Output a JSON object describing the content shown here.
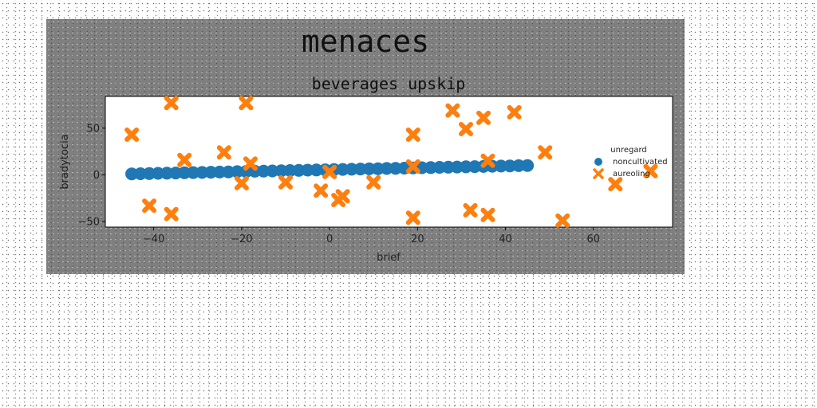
{
  "figure": {
    "suptitle": "menaces",
    "background": "#7f7f7f"
  },
  "chart_data": {
    "type": "scatter",
    "title": "beverages upskip",
    "xlabel": "brief",
    "ylabel": "bradytocia",
    "xlim": [
      -51,
      78
    ],
    "ylim": [
      -56,
      84
    ],
    "xticks": [
      -40,
      -20,
      0,
      20,
      40,
      60
    ],
    "yticks": [
      -50,
      0,
      50
    ],
    "grid": false,
    "legend": {
      "title": "unregard",
      "placement": "right",
      "entries": [
        "noncultivated",
        "aureoling"
      ]
    },
    "series": [
      {
        "name": "noncultivated",
        "marker": "circle",
        "color": "#1f77b4",
        "x": [
          -45,
          -43,
          -41,
          -39,
          -37,
          -35,
          -33,
          -31,
          -29,
          -27,
          -25,
          -23,
          -21,
          -19,
          -17,
          -15,
          -13,
          -11,
          -9,
          -7,
          -5,
          -3,
          -1,
          1,
          3,
          5,
          7,
          9,
          11,
          13,
          15,
          17,
          19,
          21,
          23,
          25,
          27,
          29,
          31,
          33,
          35,
          37,
          39,
          41,
          43,
          45
        ],
        "y": [
          1.0,
          1.2,
          1.4,
          1.6,
          1.8,
          2.0,
          2.2,
          2.4,
          2.6,
          2.8,
          3.0,
          3.2,
          3.4,
          3.6,
          3.8,
          4.0,
          4.2,
          4.4,
          4.6,
          4.8,
          5.0,
          5.2,
          5.4,
          5.6,
          5.8,
          6.0,
          6.2,
          6.4,
          6.6,
          6.8,
          7.0,
          7.2,
          7.4,
          7.6,
          7.8,
          8.0,
          8.2,
          8.4,
          8.6,
          8.8,
          9.0,
          9.2,
          9.4,
          9.6,
          9.8,
          10.0
        ]
      },
      {
        "name": "aureoling",
        "marker": "x",
        "color": "#ff7f0e",
        "x": [
          -45,
          -41,
          -36,
          -36,
          -33,
          -24,
          -20,
          -19,
          -18,
          -10,
          -2,
          0,
          2,
          3,
          10,
          19,
          19,
          19,
          28,
          31,
          32,
          35,
          36,
          36,
          42,
          49,
          53,
          65,
          73
        ],
        "y": [
          43,
          -33,
          77,
          -42,
          16,
          24,
          -9,
          77,
          12,
          -8,
          -17,
          3,
          -27,
          -23,
          -8,
          43,
          9,
          -46,
          69,
          49,
          -38,
          61,
          -43,
          15,
          67,
          24,
          -49,
          -10,
          4
        ]
      }
    ]
  }
}
